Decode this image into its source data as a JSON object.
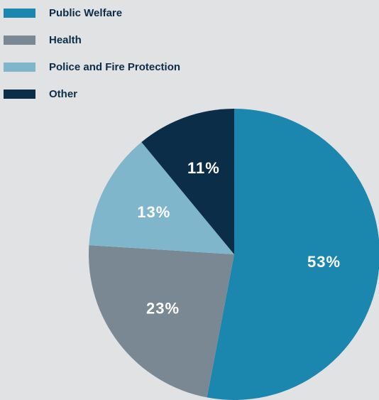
{
  "chart_data": {
    "type": "pie",
    "categories": [
      "Public Welfare",
      "Health",
      "Police and Fire Protection",
      "Other"
    ],
    "values": [
      53,
      23,
      13,
      11
    ],
    "value_labels": [
      "53%",
      "23%",
      "13%",
      "11%"
    ],
    "colors": [
      "#1b87ae",
      "#7a8893",
      "#7fb6cc",
      "#0c2d47"
    ],
    "legend": "top-left"
  }
}
